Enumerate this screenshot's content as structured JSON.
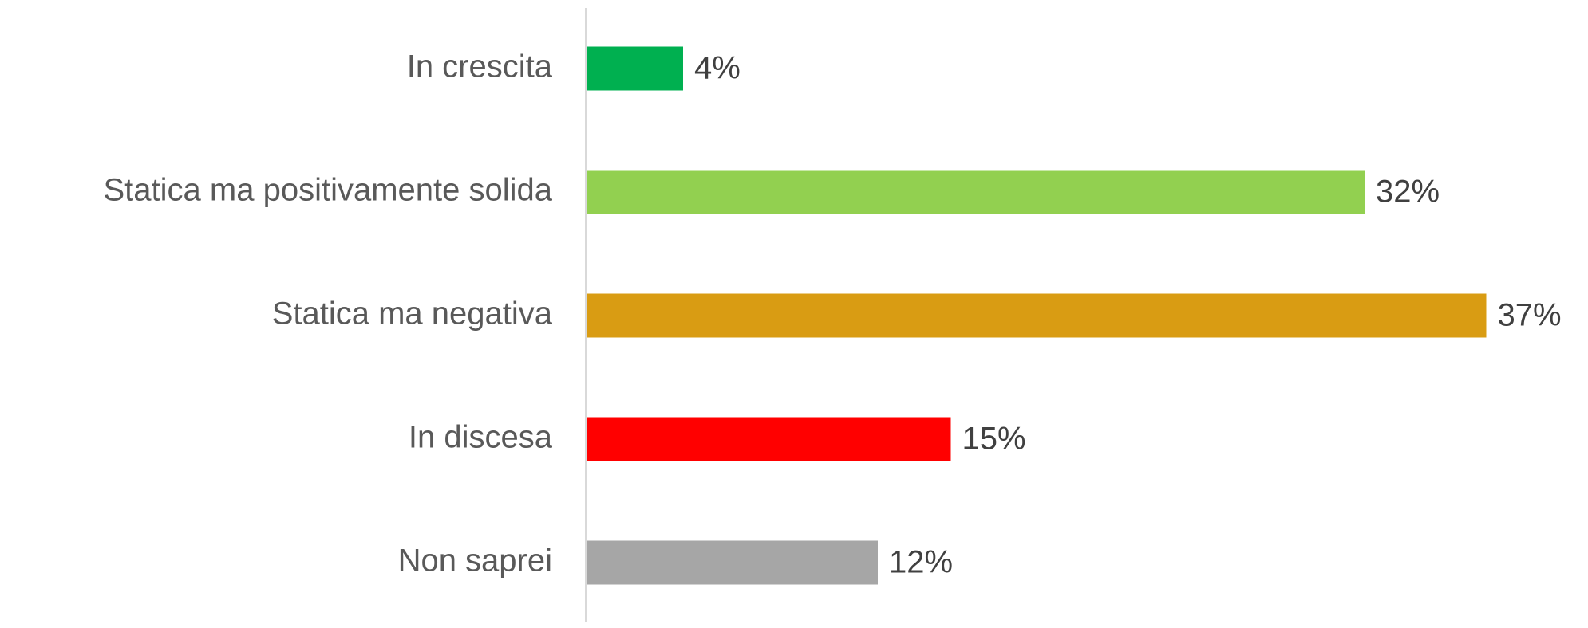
{
  "chart_data": {
    "type": "barh",
    "categories": [
      "In crescita",
      "Statica ma positivamente solida",
      "Statica ma negativa",
      "In discesa",
      "Non saprei"
    ],
    "values": [
      4,
      32,
      37,
      15,
      12
    ],
    "value_labels": [
      "4%",
      "32%",
      "37%",
      "15%",
      "12%"
    ],
    "colors": [
      "#00b050",
      "#92d050",
      "#d99c13",
      "#ff0000",
      "#a6a6a6"
    ],
    "xlim": [
      0,
      40
    ]
  }
}
